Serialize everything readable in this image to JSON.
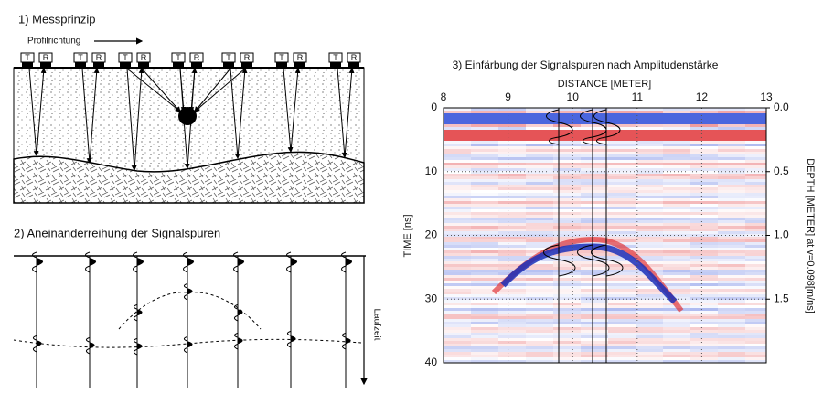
{
  "panel1": {
    "title": "1) Messprinzip",
    "direction": "Profilrichtung",
    "antennas": [
      {
        "t": "T",
        "r": "R"
      },
      {
        "t": "T",
        "r": "R"
      },
      {
        "t": "T",
        "r": "R"
      },
      {
        "t": "T",
        "r": "R"
      },
      {
        "t": "T",
        "r": "R"
      },
      {
        "t": "T",
        "r": "R"
      },
      {
        "t": "T",
        "r": "R"
      }
    ]
  },
  "panel2": {
    "title": "2) Aneinanderreihung der Signalspuren",
    "time_label": "Laufzeit"
  },
  "panel3": {
    "title": "3) Einfärbung der Signalspuren nach Amplitudenstärke",
    "x_label": "DISTANCE [METER]",
    "y_label": "TIME [ns]",
    "y2_label": "DEPTH [METER] at v=0.098[m/ns]",
    "xlim": [
      8,
      13
    ],
    "xticks": [
      8,
      9,
      10,
      11,
      12,
      13
    ],
    "ylim": [
      0,
      40
    ],
    "yticks": [
      0,
      10,
      20,
      30,
      40
    ],
    "y2lim": [
      0,
      2
    ],
    "y2ticks": [
      {
        "value": 0,
        "label": "0.0"
      },
      {
        "value": 0.5,
        "label": "0.5"
      },
      {
        "value": 1,
        "label": "1.0"
      },
      {
        "value": 1.5,
        "label": "1.5"
      }
    ]
  }
}
